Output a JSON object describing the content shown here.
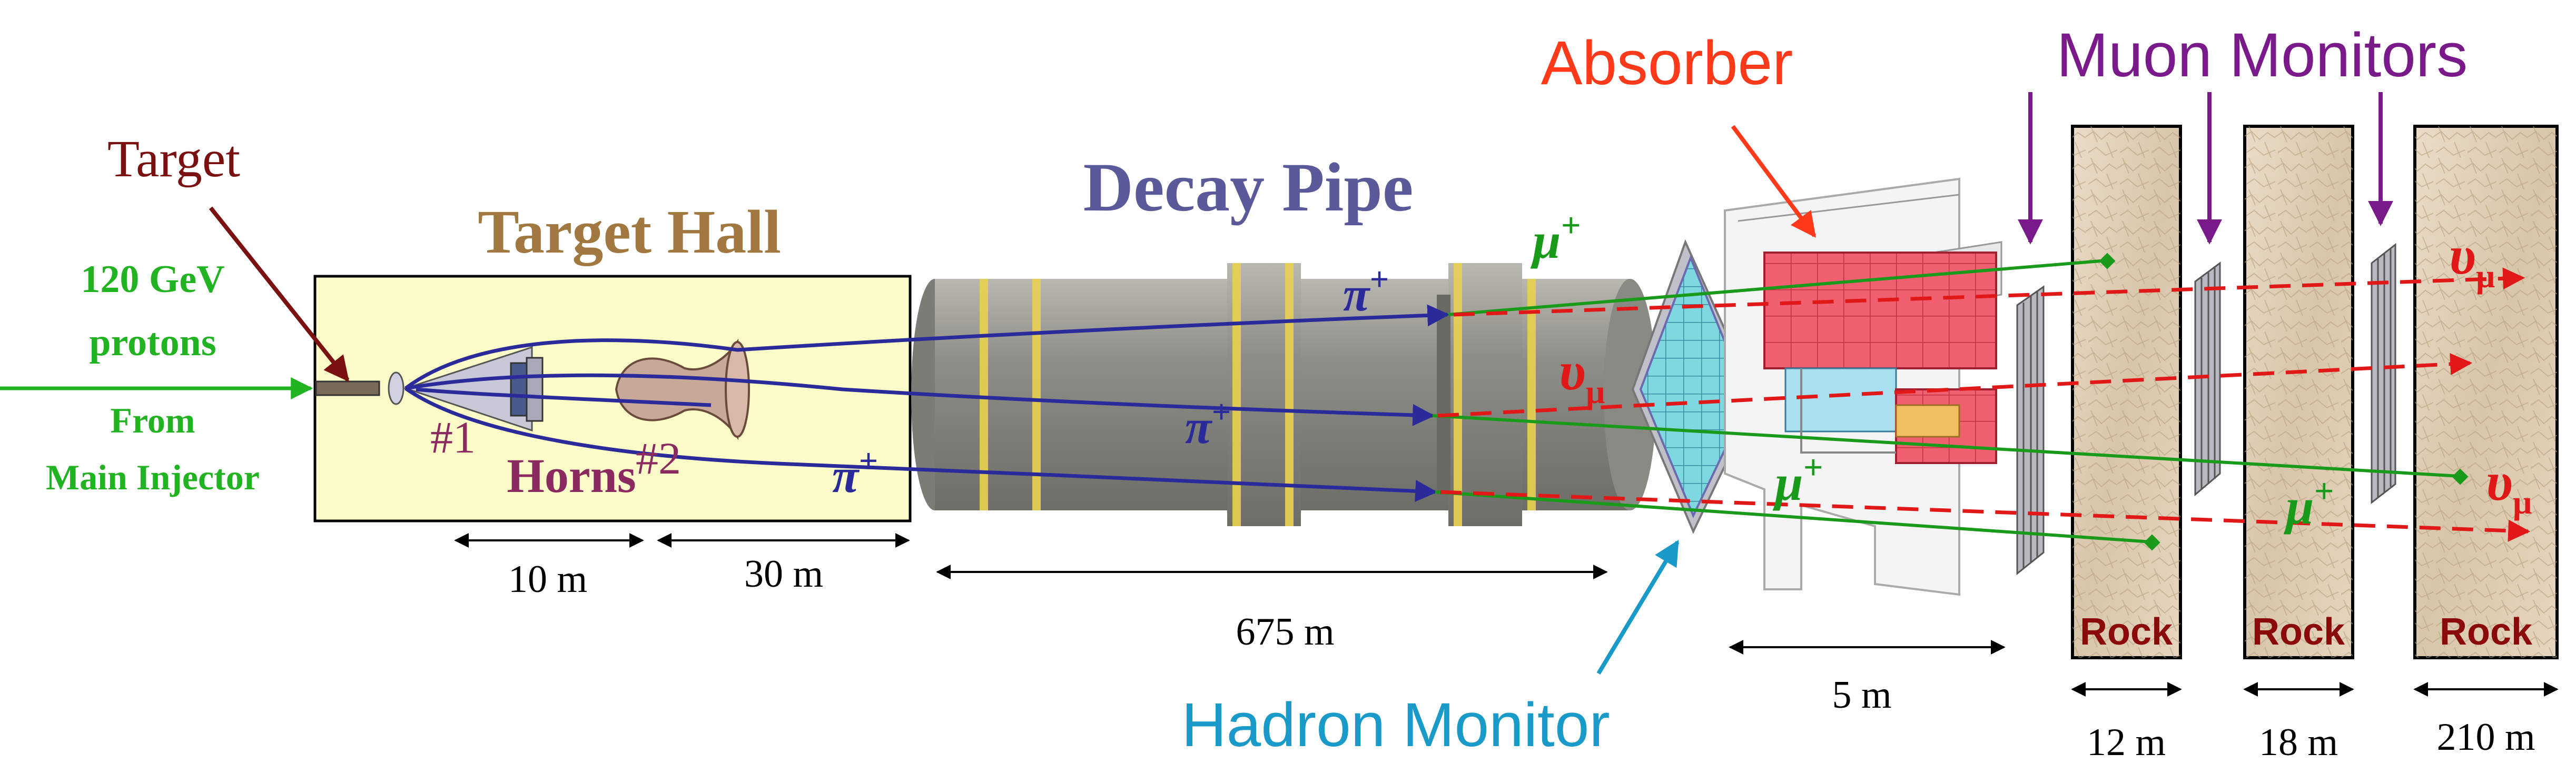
{
  "labels": {
    "target": "Target",
    "target_hall": "Target Hall",
    "beam_energy": "120 GeV",
    "beam_particle": "protons",
    "beam_from": "From",
    "beam_source": "Main Injector",
    "horn1": "#1",
    "horn2": "#2",
    "horns": "Horns",
    "decay_pipe": "Decay Pipe",
    "absorber": "Absorber",
    "muon_monitors": "Muon Monitors",
    "hadron_monitor": "Hadron Monitor",
    "rock": "Rock"
  },
  "particles": {
    "pi": "π",
    "mu": "μ",
    "nu": "υ",
    "plus": "+",
    "sub_mu": "μ"
  },
  "scale": {
    "d_10m": "10 m",
    "d_30m": "30 m",
    "d_675m": "675 m",
    "d_5m": "5 m",
    "d_12m": "12 m",
    "d_18m": "18 m",
    "d_210m": "210 m"
  },
  "colors": {
    "target_label": "#7a1010",
    "target_hall_label": "#a07840",
    "beam_green": "#22b322",
    "horn_label": "#8a2a60",
    "pion_blue": "#2a2a9a",
    "decay_pipe_label": "#5a5a9a",
    "absorber_label": "#ff3a1a",
    "muon_monitor_label": "#7a1a8a",
    "hadron_monitor_label": "#1a9ac8",
    "muon_green": "#1a9a1a",
    "neutrino_red": "#e01818",
    "rock_label": "#8a0a0a",
    "hall_fill": "#fcfcc8"
  }
}
